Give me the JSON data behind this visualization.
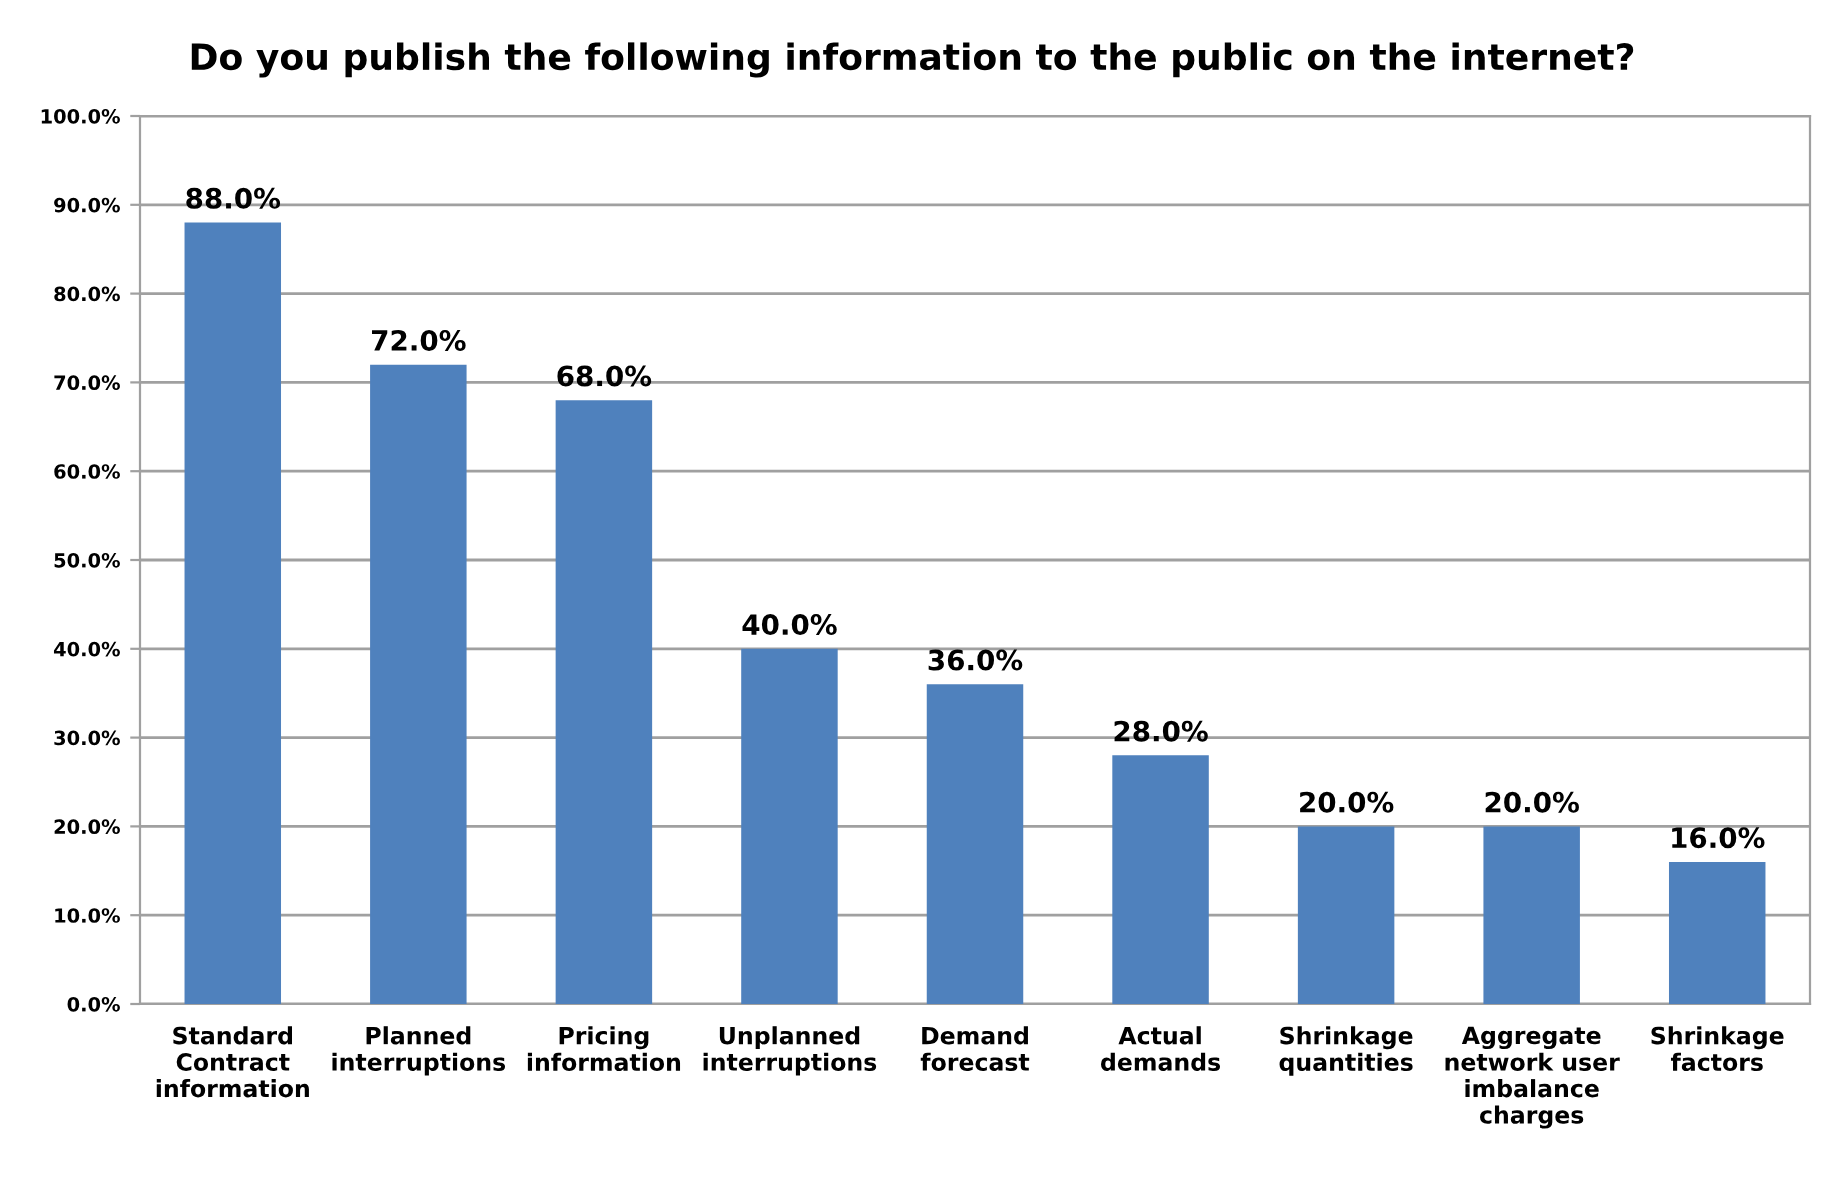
{
  "chart_data": {
    "type": "bar",
    "title": "Do you publish the following information to the public on the internet?",
    "categories": [
      "Standard\nContract\ninformation",
      "Planned\ninterruptions",
      "Pricing\ninformation",
      "Unplanned\ninterruptions",
      "Demand\nforecast",
      "Actual\ndemands",
      "Shrinkage\nquantities",
      "Aggregate\nnetwork user\nimbalance\ncharges",
      "Shrinkage\nfactors"
    ],
    "values": [
      88.0,
      72.0,
      68.0,
      40.0,
      36.0,
      28.0,
      20.0,
      20.0,
      16.0
    ],
    "value_labels": [
      "88.0%",
      "72.0%",
      "68.0%",
      "40.0%",
      "36.0%",
      "28.0%",
      "20.0%",
      "20.0%",
      "16.0%"
    ],
    "color": "#4f81bd",
    "ylim": [
      0,
      100
    ],
    "yticks": [
      {
        "value": 0,
        "label": "0.0%"
      },
      {
        "value": 10,
        "label": "10.0%"
      },
      {
        "value": 20,
        "label": "20.0%"
      },
      {
        "value": 30,
        "label": "30.0%"
      },
      {
        "value": 40,
        "label": "40.0%"
      },
      {
        "value": 50,
        "label": "50.0%"
      },
      {
        "value": 60,
        "label": "60.0%"
      },
      {
        "value": 70,
        "label": "70.0%"
      },
      {
        "value": 80,
        "label": "80.0%"
      },
      {
        "value": 90,
        "label": "90.0%"
      },
      {
        "value": 100,
        "label": "100.0%"
      }
    ],
    "grid": "y",
    "legend": false
  }
}
